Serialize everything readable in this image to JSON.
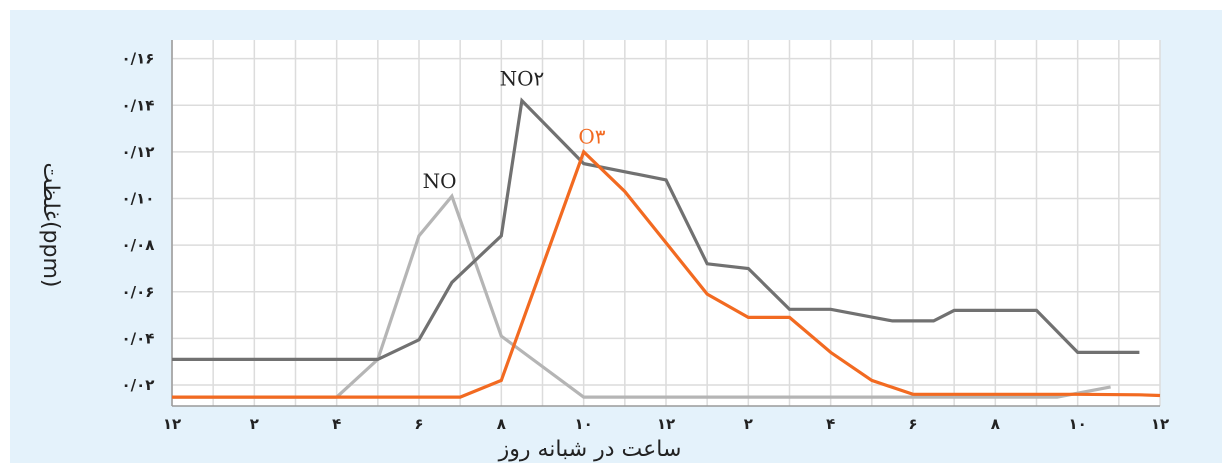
{
  "chart_data": {
    "type": "line",
    "xlabel": "ساعت در شبانه روز",
    "ylabel": "غلظت(ppm)",
    "x_tick_labels": [
      "۱۲",
      "۲",
      "۴",
      "۶",
      "۸",
      "۱۰",
      "۱۲",
      "۲",
      "۴",
      "۶",
      "۸",
      "۱۰",
      "۱۲"
    ],
    "y_tick_labels": [
      "۰/۰۲",
      "۰/۰۴",
      "۰/۰۶",
      "۰/۰۸",
      "۰/۱۰",
      "۰/۱۲",
      "۰/۱۴",
      "۰/۱۶"
    ],
    "x_tick_values": [
      0,
      2,
      4,
      6,
      8,
      10,
      12,
      14,
      16,
      18,
      20,
      22,
      24
    ],
    "y_tick_values": [
      0.02,
      0.04,
      0.06,
      0.08,
      0.1,
      0.12,
      0.14,
      0.16
    ],
    "xlim": [
      0,
      24
    ],
    "ylim": [
      0.011,
      0.168
    ],
    "grid": true,
    "series": [
      {
        "name": "NO",
        "color": "#b5b5b5",
        "x": [
          0,
          4,
          5,
          6,
          6.8,
          8,
          10,
          12,
          14,
          16,
          18,
          20,
          21.5,
          22.8
        ],
        "y": [
          0.0148,
          0.0148,
          0.031,
          0.084,
          0.101,
          0.041,
          0.0148,
          0.0148,
          0.0148,
          0.0148,
          0.0148,
          0.0148,
          0.0148,
          0.0192
        ]
      },
      {
        "name": "NO۲",
        "color": "#717171",
        "x": [
          0,
          5,
          6,
          6.8,
          8,
          8.5,
          10,
          12,
          13,
          14,
          15,
          16,
          17.5,
          18.5,
          19,
          21,
          22,
          23.5
        ],
        "y": [
          0.031,
          0.031,
          0.0394,
          0.064,
          0.084,
          0.142,
          0.115,
          0.108,
          0.072,
          0.07,
          0.0525,
          0.0525,
          0.0475,
          0.0475,
          0.052,
          0.052,
          0.034,
          0.034
        ]
      },
      {
        "name": "O۳",
        "color": "#f26a21",
        "x": [
          0,
          7,
          8,
          10,
          11,
          12,
          13,
          14,
          15,
          16,
          17,
          18,
          19,
          21,
          22,
          23.5,
          24
        ],
        "y": [
          0.0148,
          0.0148,
          0.022,
          0.12,
          0.103,
          0.081,
          0.059,
          0.049,
          0.049,
          0.034,
          0.022,
          0.016,
          0.016,
          0.016,
          0.016,
          0.0158,
          0.0155
        ]
      }
    ],
    "annotations": [
      {
        "text": "NO",
        "x": 6.5,
        "y": 0.102
      },
      {
        "text": "NO۲",
        "x": 8.5,
        "y": 0.146
      },
      {
        "text": "O۳",
        "x": 10.2,
        "y": 0.121
      }
    ]
  }
}
